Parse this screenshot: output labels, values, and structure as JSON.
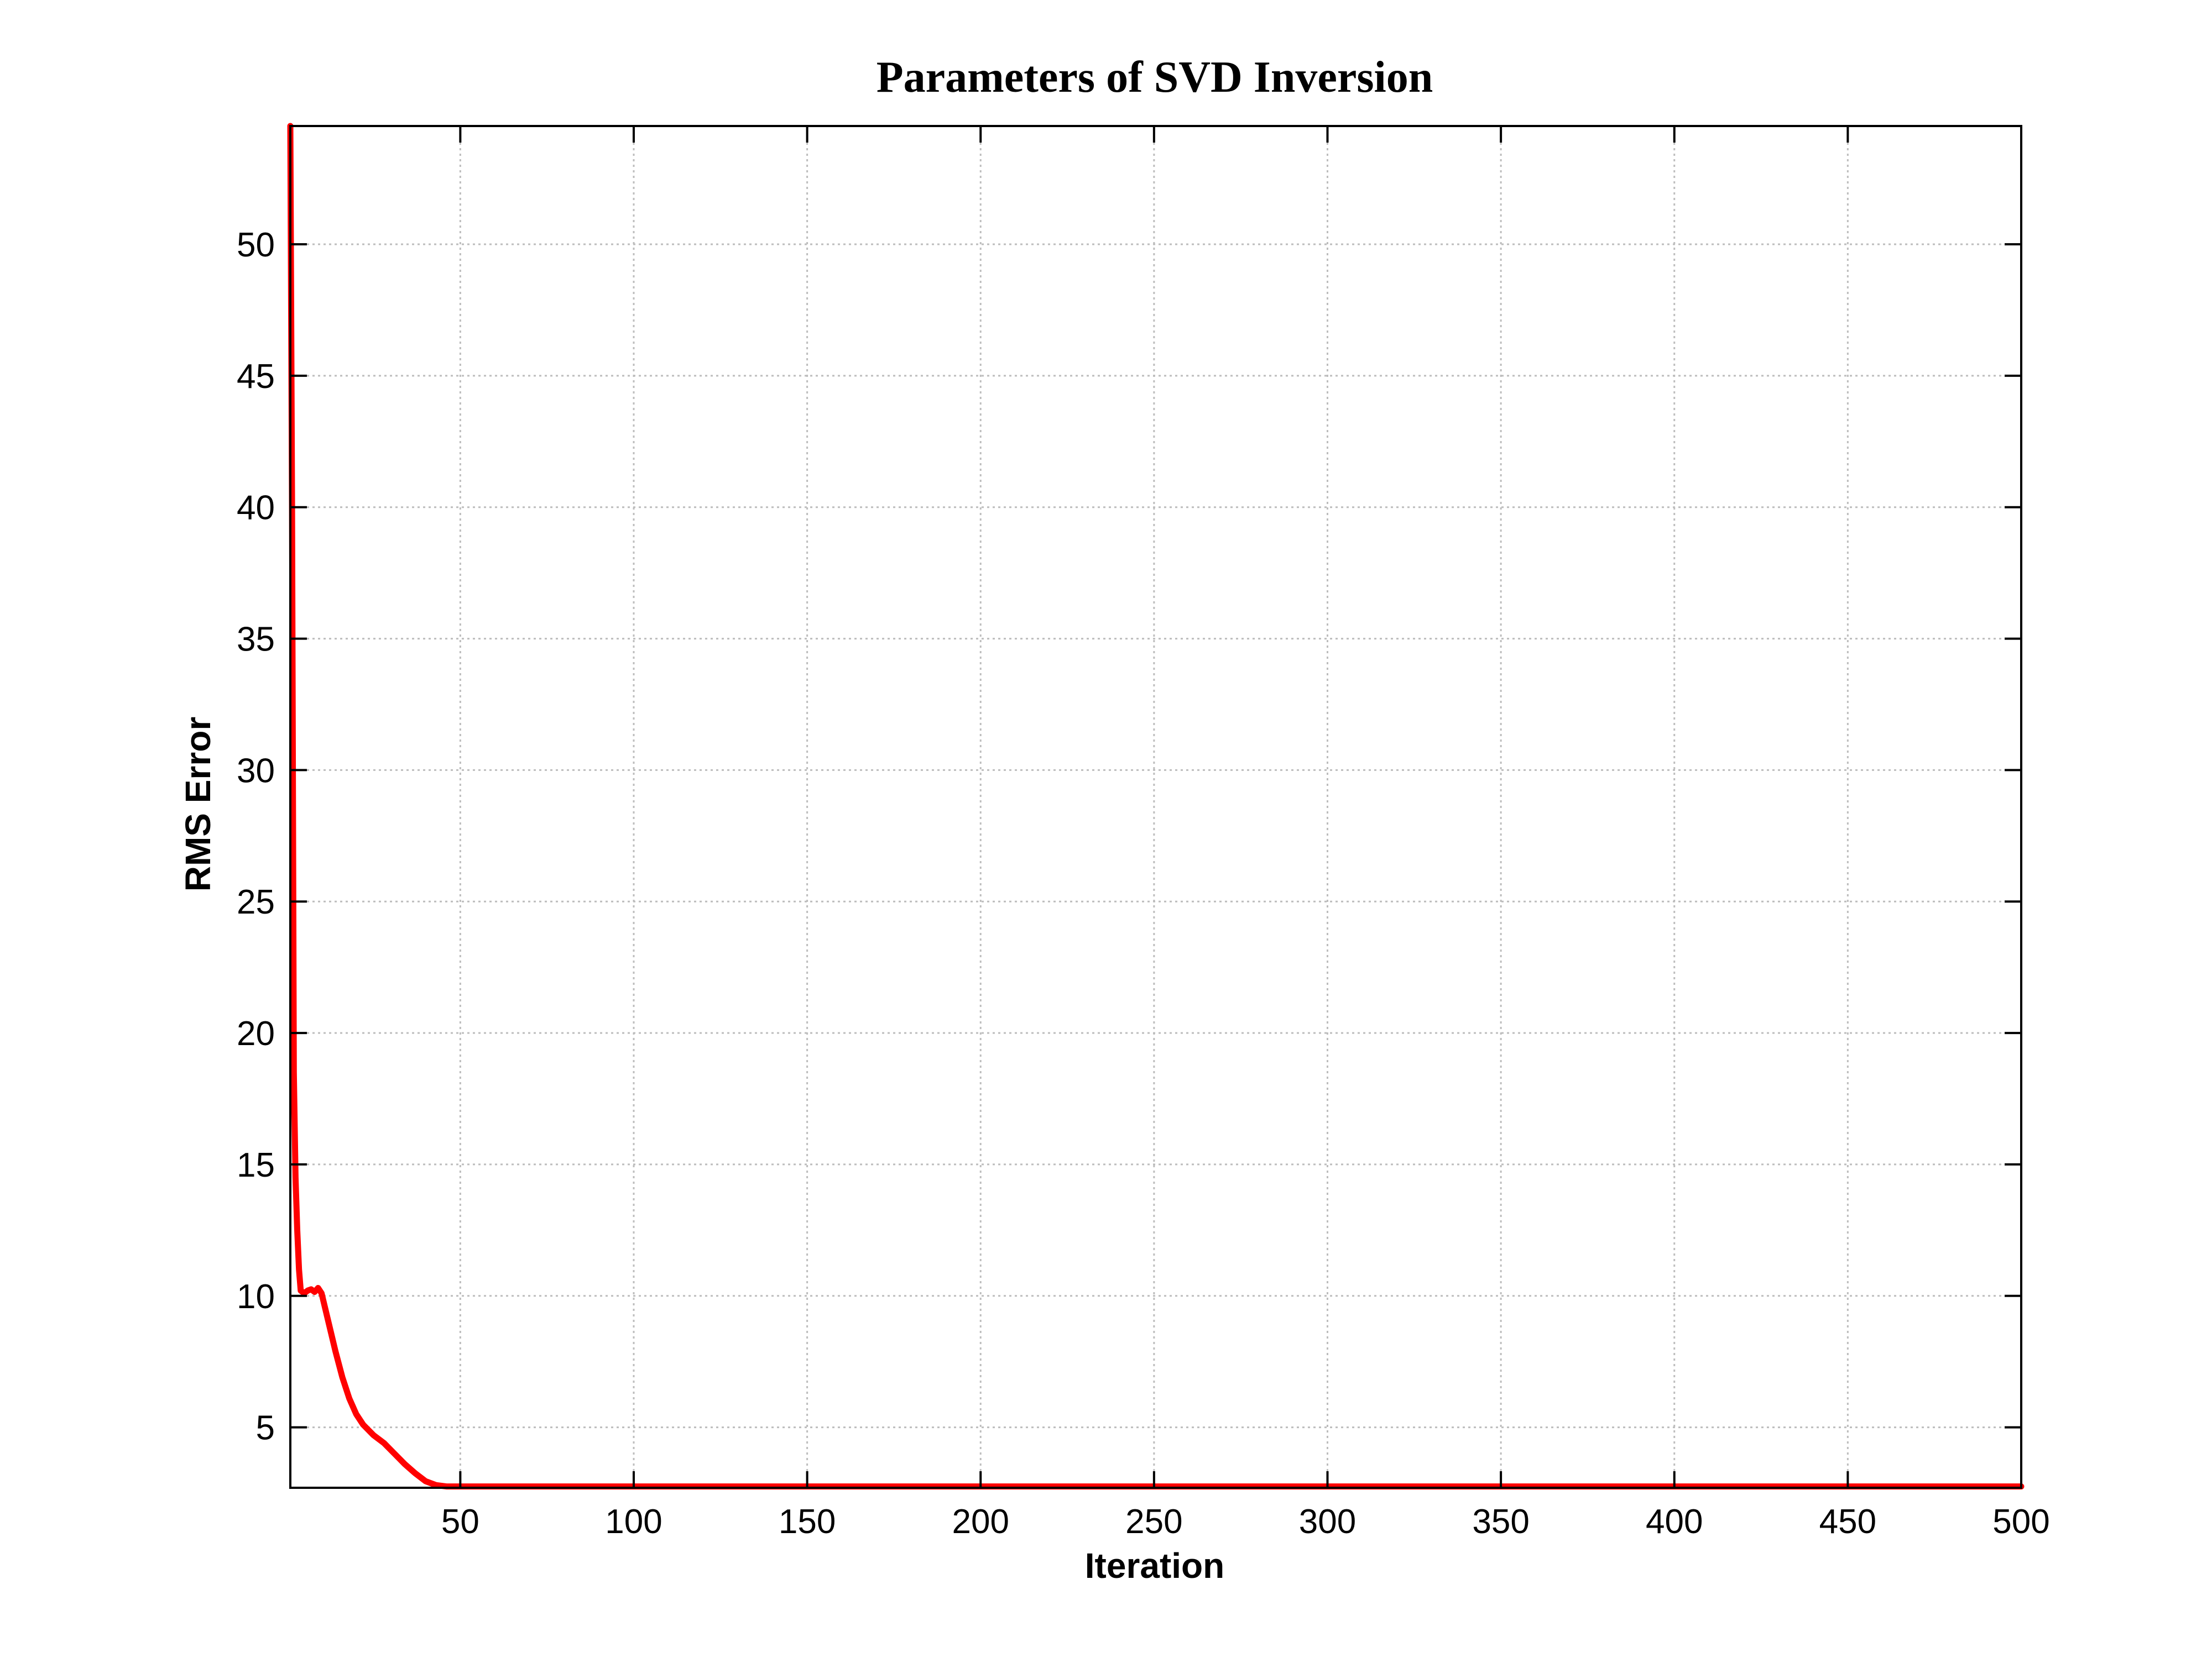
{
  "chart_data": {
    "type": "line",
    "title": "Parameters of SVD Inversion",
    "xlabel": "Iteration",
    "ylabel": "RMS Error",
    "xlim": [
      1,
      500
    ],
    "ylim": [
      2.7,
      54.5
    ],
    "grid": true,
    "legend": "none",
    "x_ticks": [
      50,
      100,
      150,
      200,
      250,
      300,
      350,
      400,
      450,
      500
    ],
    "y_ticks": [
      5,
      10,
      15,
      20,
      25,
      30,
      35,
      40,
      45,
      50
    ],
    "series": [
      {
        "color": "#ff0000",
        "x": [
          1,
          1.5,
          2,
          2.5,
          3,
          3.5,
          4,
          5,
          6,
          7,
          8,
          9,
          10,
          12,
          14,
          16,
          18,
          20,
          22,
          25,
          28,
          31,
          34,
          37,
          40,
          43,
          46,
          50,
          60,
          80,
          100,
          150,
          200,
          250,
          300,
          350,
          400,
          450,
          500
        ],
        "y": [
          54.5,
          40,
          18.5,
          14.5,
          12.5,
          11,
          10.2,
          10.1,
          10.2,
          10.25,
          10.15,
          10.3,
          10.1,
          9.0,
          7.9,
          6.9,
          6.1,
          5.5,
          5.1,
          4.7,
          4.4,
          4.0,
          3.6,
          3.25,
          2.95,
          2.8,
          2.75,
          2.75,
          2.75,
          2.75,
          2.75,
          2.75,
          2.75,
          2.75,
          2.75,
          2.75,
          2.75,
          2.75,
          2.75
        ]
      }
    ]
  }
}
